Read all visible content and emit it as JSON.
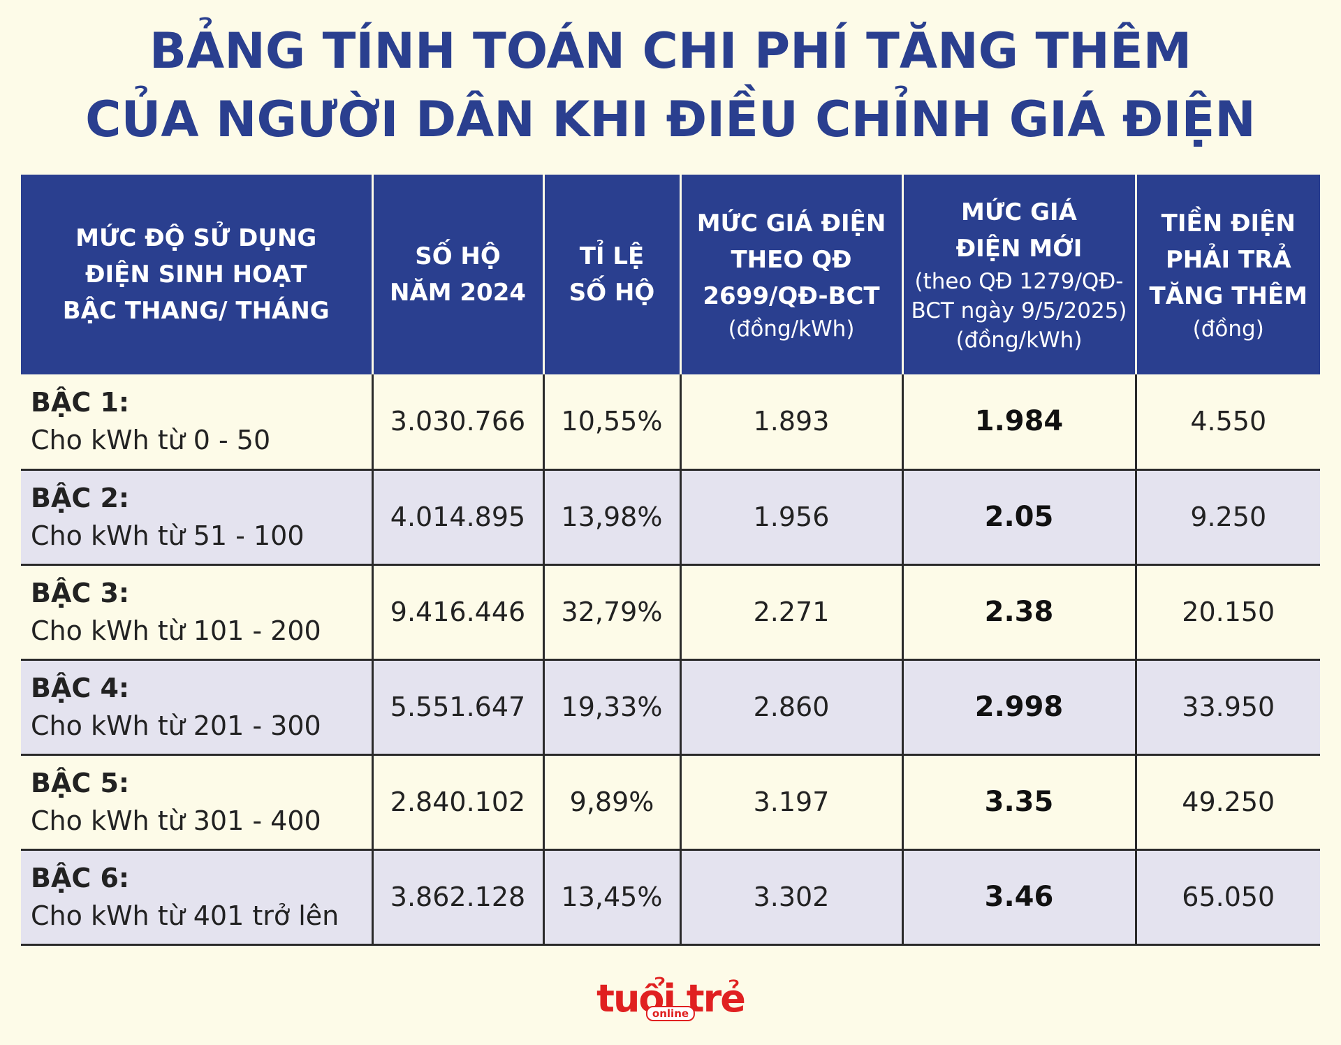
{
  "title": {
    "line1": "BẢNG TÍNH TOÁN CHI PHÍ TĂNG THÊM",
    "line2": "CỦA NGƯỜI DÂN KHI ĐIỀU CHỈNH GIÁ ĐIỆN"
  },
  "chart_data": {
    "type": "table",
    "title": "BẢNG TÍNH TOÁN CHI PHÍ TĂNG THÊM CỦA NGƯỜI DÂN KHI ĐIỀU CHỈNH GIÁ ĐIỆN",
    "columns": [
      {
        "lines": [
          "MỨC ĐỘ SỬ DỤNG",
          "ĐIỆN SINH HOẠT",
          "BẬC THANG/ THÁNG"
        ],
        "unit": ""
      },
      {
        "lines": [
          "SỐ HỘ",
          "NĂM 2024"
        ],
        "unit": ""
      },
      {
        "lines": [
          "TỈ LỆ",
          "SỐ HỘ"
        ],
        "unit": ""
      },
      {
        "lines": [
          "MỨC GIÁ ĐIỆN",
          "THEO QĐ",
          "2699/QĐ-BCT"
        ],
        "unit": "(đồng/kWh)"
      },
      {
        "lines": [
          "MỨC GIÁ",
          "ĐIỆN MỚI"
        ],
        "unit": "(theo QĐ 1279/QĐ-BCT ngày 9/5/2025) (đồng/kWh)"
      },
      {
        "lines": [
          "TIỀN ĐIỆN",
          "PHẢI TRẢ",
          "TĂNG THÊM"
        ],
        "unit": "(đồng)"
      }
    ],
    "rows": [
      {
        "tier": "BẬC 1:",
        "range": "Cho kWh từ 0 - 50",
        "households": "3.030.766",
        "share": "10,55%",
        "old_price": "1.893",
        "new_price": "1.984",
        "increase": "4.550"
      },
      {
        "tier": "BẬC 2:",
        "range": "Cho kWh từ 51 - 100",
        "households": "4.014.895",
        "share": "13,98%",
        "old_price": "1.956",
        "new_price": "2.05",
        "increase": "9.250"
      },
      {
        "tier": "BẬC 3:",
        "range": "Cho kWh từ 101 - 200",
        "households": "9.416.446",
        "share": "32,79%",
        "old_price": "2.271",
        "new_price": "2.38",
        "increase": "20.150"
      },
      {
        "tier": "BẬC 4:",
        "range": " Cho kWh từ 201 - 300",
        "households": "5.551.647",
        "share": "19,33%",
        "old_price": "2.860",
        "new_price": "2.998",
        "increase": "33.950"
      },
      {
        "tier": "BẬC 5:",
        "range": "Cho kWh từ 301 - 400",
        "households": "2.840.102",
        "share": "9,89%",
        "old_price": "3.197",
        "new_price": "3.35",
        "increase": "49.250"
      },
      {
        "tier": "BẬC 6:",
        "range": "Cho kWh từ 401 trở lên",
        "households": "3.862.128",
        "share": "13,45%",
        "old_price": "3.302",
        "new_price": "3.46",
        "increase": "65.050"
      }
    ]
  },
  "logo": {
    "main": "tuổi trẻ",
    "sub": "online"
  },
  "colors": {
    "header_bg": "#2a3f8f",
    "title": "#2a3f8f",
    "row_alt": "#e4e3ef",
    "background": "#fdfbe8",
    "logo": "#e02020"
  }
}
